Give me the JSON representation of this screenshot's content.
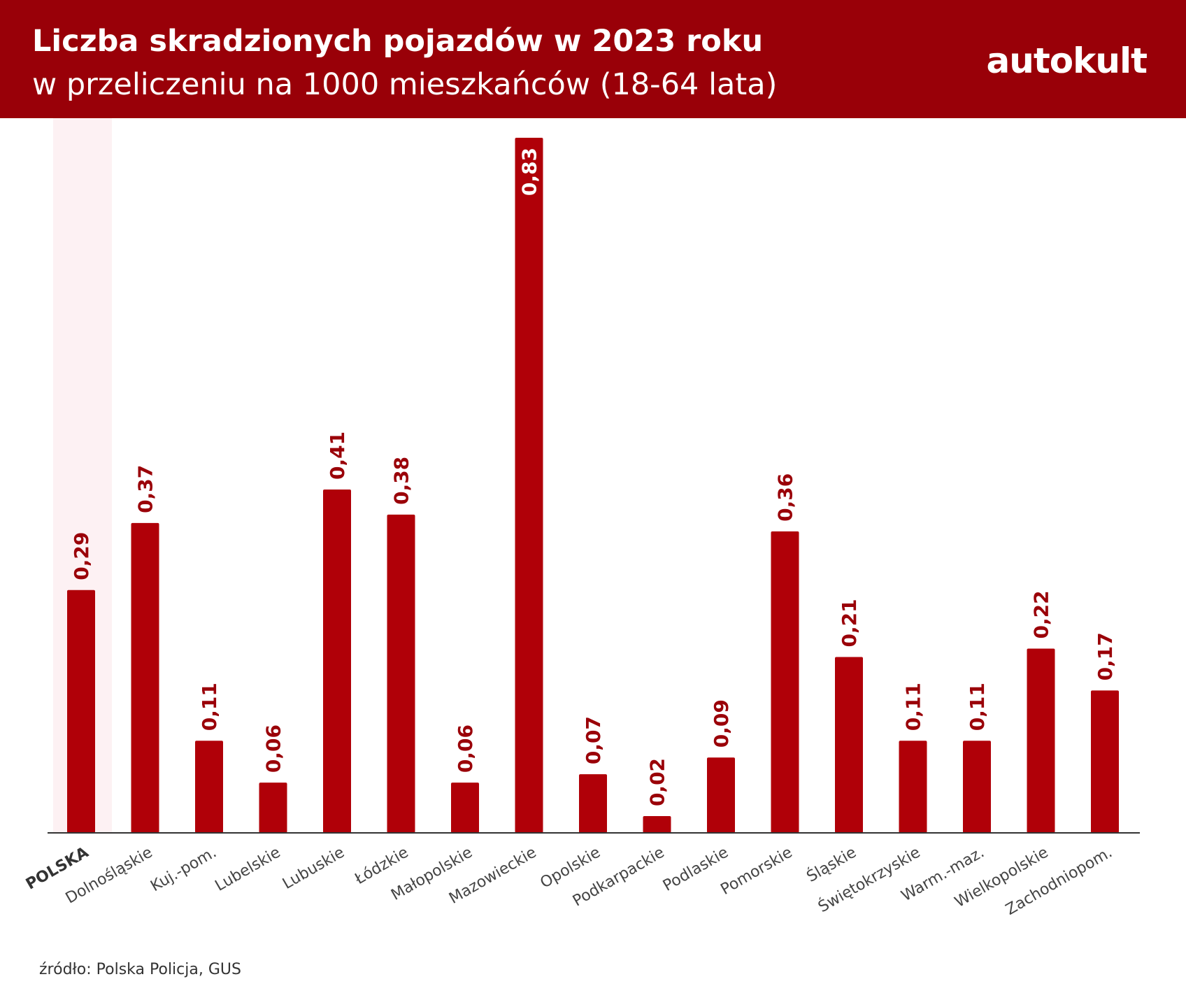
{
  "header": {
    "title": "Liczba skradzionych pojazdów w 2023 roku",
    "subtitle": "w przeliczeniu na 1000 mieszkańców (18-64 lata)",
    "brand": "autokult"
  },
  "source": "źródło: Polska Policja, GUS",
  "colors": {
    "header_bg": "#990008",
    "bar": "#B00008",
    "highlight_bg": "#FDF1F3",
    "value_label": "#9A0008",
    "category_label": "#444444"
  },
  "chart_data": {
    "type": "bar",
    "title": "Liczba skradzionych pojazdów w 2023 roku",
    "subtitle": "w przeliczeniu na 1000 mieszkańców (18-64 lata)",
    "categories": [
      "POLSKA",
      "Dolnośląskie",
      "Kuj.-pom.",
      "Lubelskie",
      "Lubuskie",
      "Łódzkie",
      "Małopolskie",
      "Mazowieckie",
      "Opolskie",
      "Podkarpackie",
      "Podlaskie",
      "Pomorskie",
      "Śląskie",
      "Świętokrzyskie",
      "Warm.-maz.",
      "Wielkopolskie",
      "Zachodniopom."
    ],
    "values": [
      0.29,
      0.37,
      0.11,
      0.06,
      0.41,
      0.38,
      0.06,
      0.83,
      0.07,
      0.02,
      0.09,
      0.36,
      0.21,
      0.11,
      0.11,
      0.22,
      0.17
    ],
    "value_labels": [
      "0,29",
      "0,37",
      "0,11",
      "0,06",
      "0,41",
      "0,38",
      "0,06",
      "0,83",
      "0,07",
      "0,02",
      "0,09",
      "0,36",
      "0,21",
      "0,11",
      "0,11",
      "0,22",
      "0,17"
    ],
    "highlighted": "POLSKA",
    "ylim": [
      0,
      0.83
    ],
    "grid": false,
    "legend": "none"
  }
}
